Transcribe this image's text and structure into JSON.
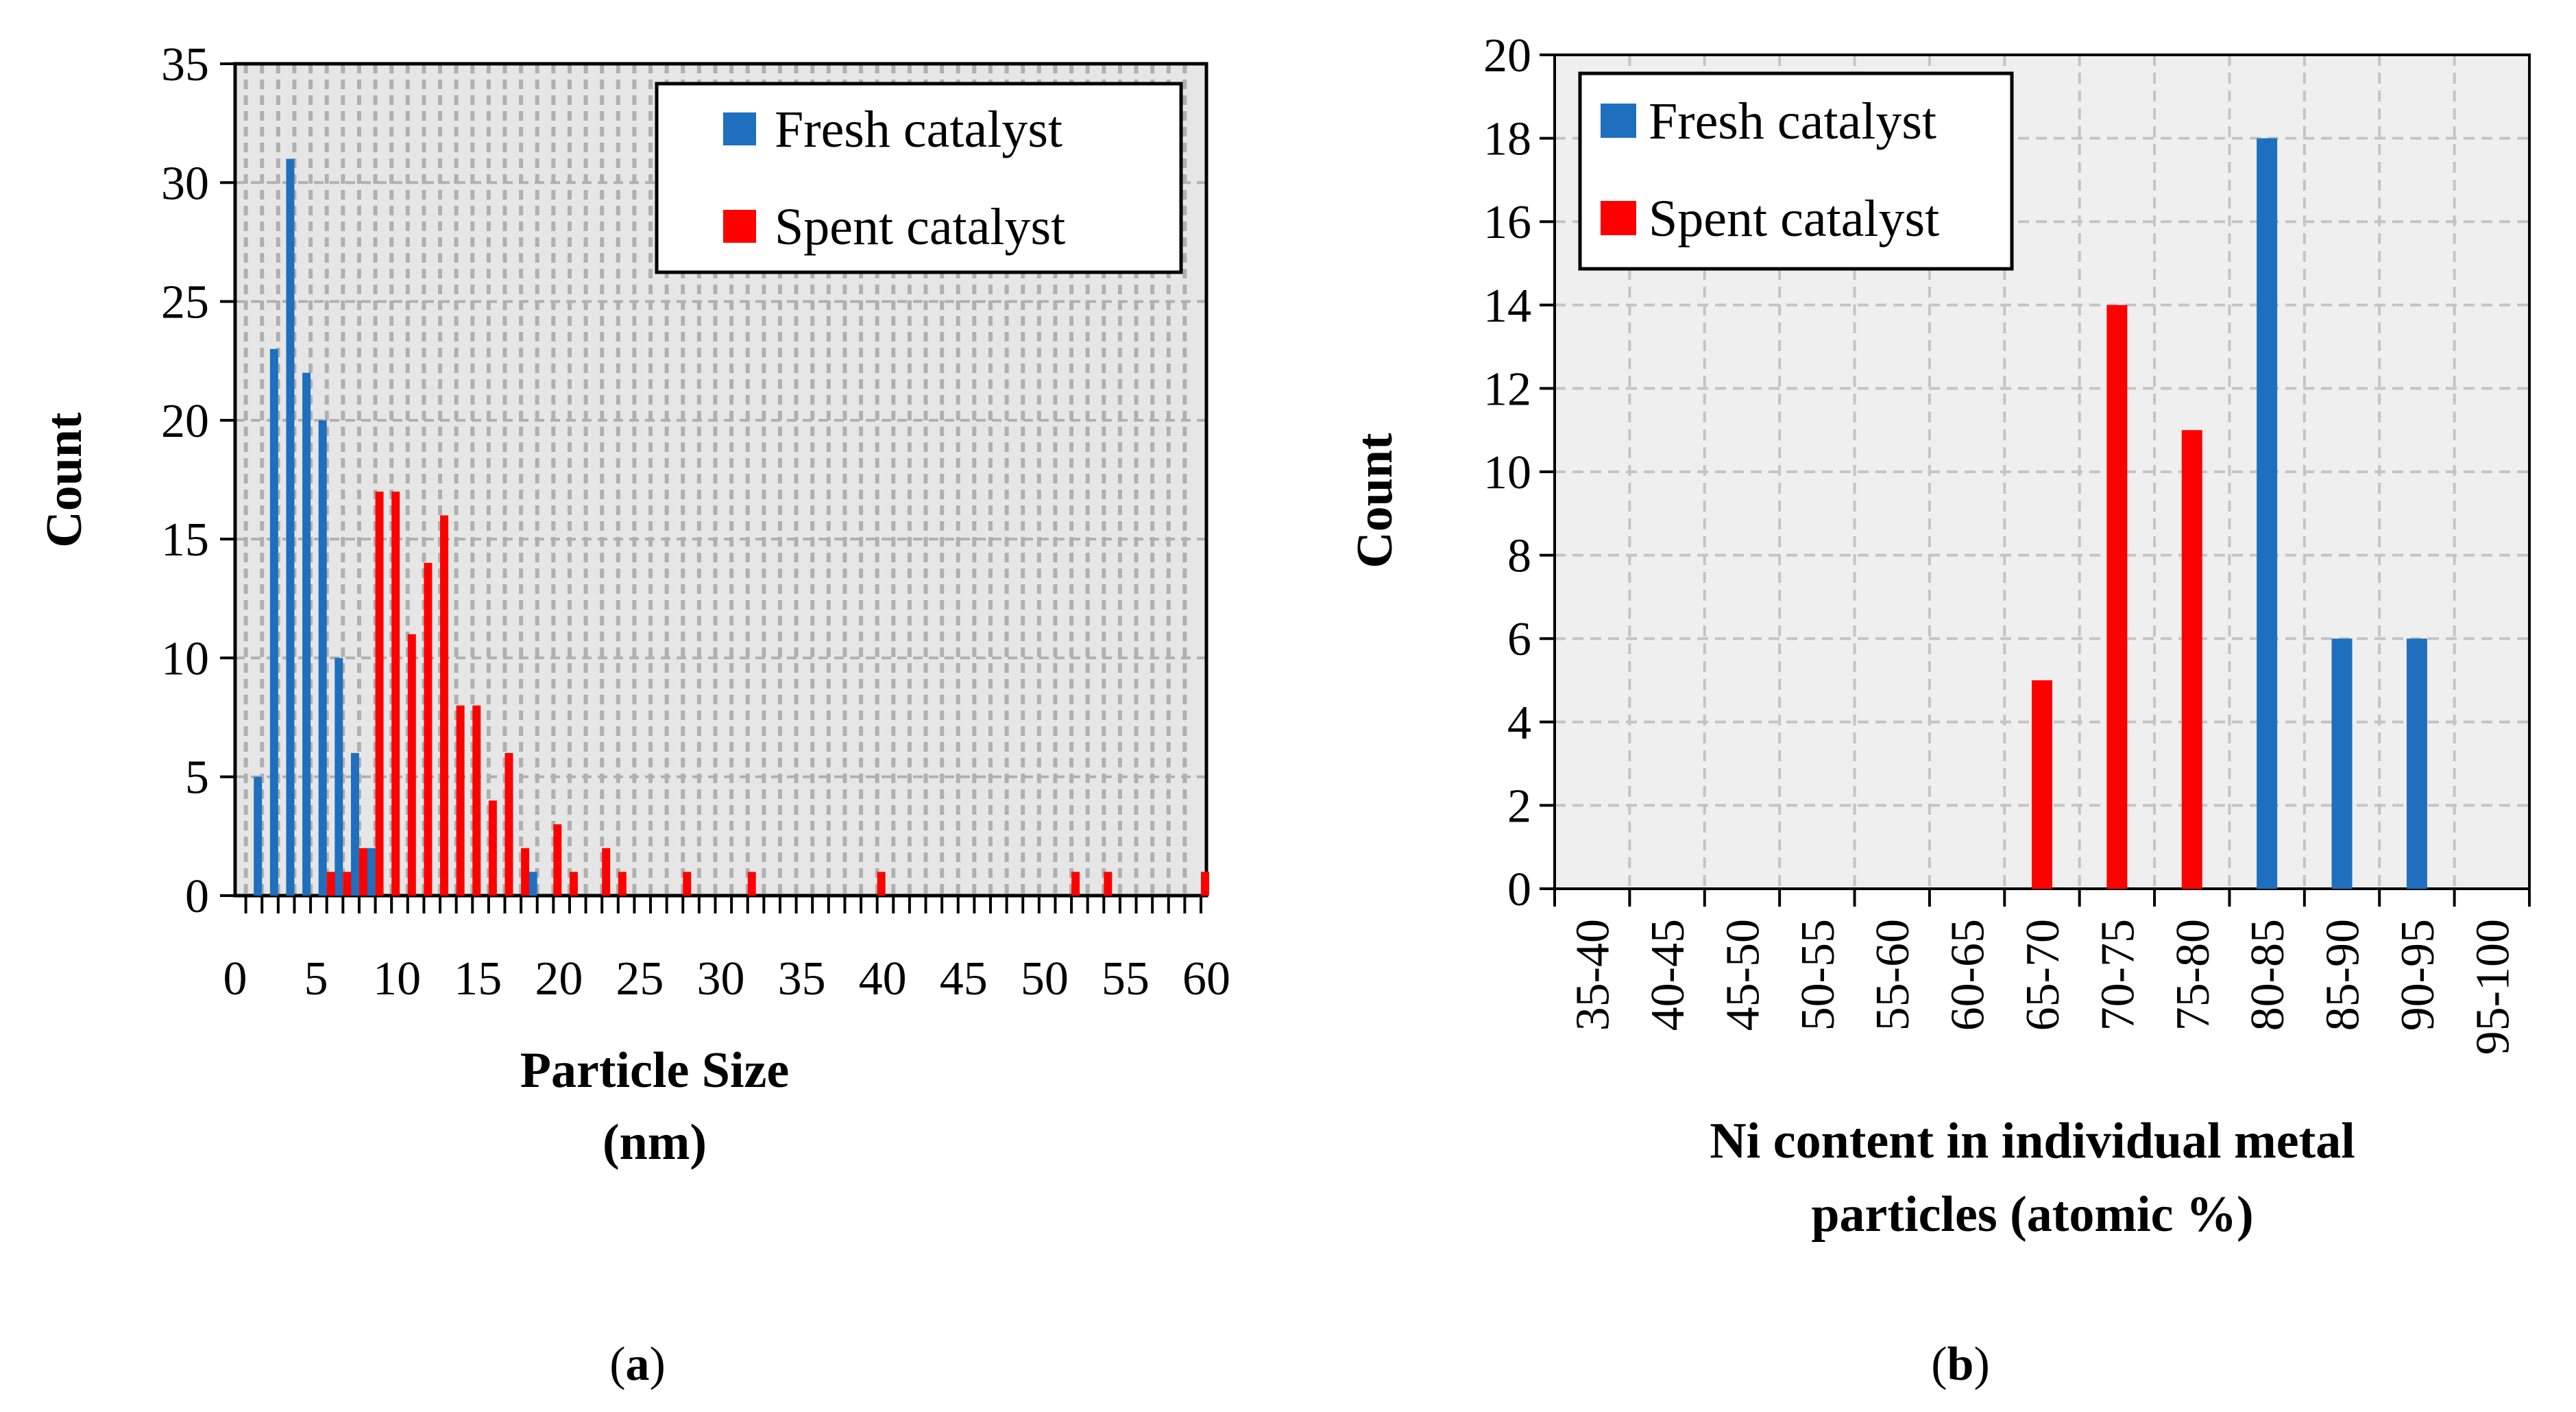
{
  "chart_data": [
    {
      "type": "bar",
      "panel_label": "(a)",
      "panel_letter": "a",
      "title": "",
      "xlabel_lines": [
        "Particle Size",
        "(nm)"
      ],
      "ylabel": "Count",
      "xlim": [
        0,
        60
      ],
      "ylim": [
        0,
        35
      ],
      "xticks": [
        0,
        5,
        10,
        15,
        20,
        25,
        30,
        35,
        40,
        45,
        50,
        55,
        60
      ],
      "yticks": [
        0,
        5,
        10,
        15,
        20,
        25,
        30,
        35
      ],
      "grid": true,
      "legend": "top-right",
      "series": [
        {
          "name": "Fresh catalyst",
          "color": "#1f6fbf",
          "points": [
            [
              2,
              5
            ],
            [
              3,
              23
            ],
            [
              4,
              31
            ],
            [
              5,
              22
            ],
            [
              6,
              20
            ],
            [
              7,
              10
            ],
            [
              8,
              6
            ],
            [
              9,
              2
            ],
            [
              19,
              1
            ]
          ]
        },
        {
          "name": "Spent catalyst",
          "color": "#ff0000",
          "points": [
            [
              6,
              1
            ],
            [
              7,
              1
            ],
            [
              8,
              2
            ],
            [
              9,
              17
            ],
            [
              10,
              17
            ],
            [
              11,
              11
            ],
            [
              12,
              14
            ],
            [
              13,
              16
            ],
            [
              14,
              8
            ],
            [
              15,
              8
            ],
            [
              16,
              4
            ],
            [
              17,
              6
            ],
            [
              18,
              2
            ],
            [
              20,
              3
            ],
            [
              21,
              1
            ],
            [
              23,
              2
            ],
            [
              24,
              1
            ],
            [
              28,
              1
            ],
            [
              32,
              1
            ],
            [
              40,
              1
            ],
            [
              52,
              1
            ],
            [
              54,
              1
            ],
            [
              60,
              1
            ]
          ]
        }
      ]
    },
    {
      "type": "bar",
      "panel_label": "(b)",
      "panel_letter": "b",
      "title": "",
      "xlabel_lines": [
        "Ni content in individual metal",
        "particles (atomic %)"
      ],
      "ylabel": "Count",
      "ylim": [
        0,
        20
      ],
      "yticks": [
        0,
        2,
        4,
        6,
        8,
        10,
        12,
        14,
        16,
        18,
        20
      ],
      "categories": [
        "35-40",
        "40-45",
        "45-50",
        "50-55",
        "55-60",
        "60-65",
        "65-70",
        "70-75",
        "75-80",
        "80-85",
        "85-90",
        "90-95",
        "95-100"
      ],
      "grid": true,
      "legend": "top-left",
      "series": [
        {
          "name": "Fresh catalyst",
          "color": "#1f6fbf",
          "values": [
            0,
            0,
            0,
            0,
            0,
            0,
            0,
            0,
            0,
            18,
            6,
            6,
            0
          ]
        },
        {
          "name": "Spent catalyst",
          "color": "#ff0000",
          "values": [
            0,
            0,
            0,
            0,
            0,
            0,
            5,
            14,
            11,
            0,
            0,
            0,
            0
          ]
        }
      ]
    }
  ]
}
